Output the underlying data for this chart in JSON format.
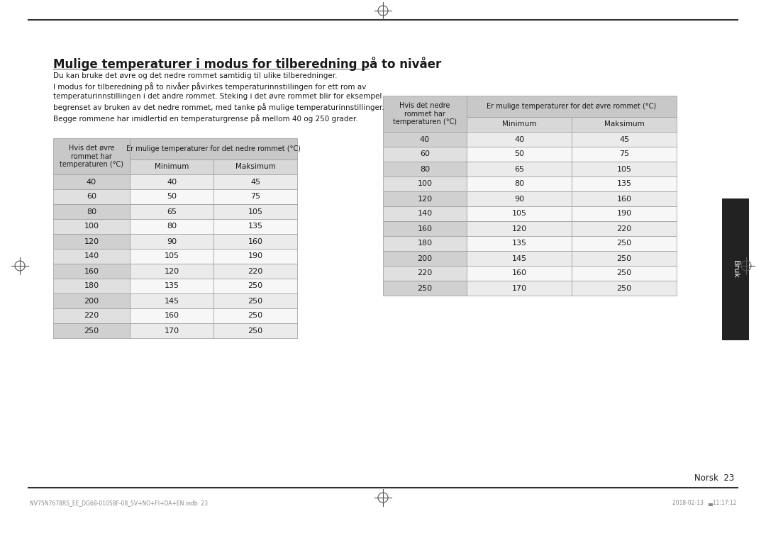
{
  "title": "Mulige temperaturer i modus for tilberedning på to nivåer",
  "description": "Du kan bruke det øvre og det nedre rommet samtidig til ulike tilberedninger.\nI modus for tilberedning på to nivåer påvirkes temperaturinnstillingen for ett rom av\ntemperaturinnstillingen i det andre rommet. Steking i det øvre rommet blir for eksempel\nbegrenset av bruken av det nedre rommet, med tanke på mulige temperaturinnstillinger.\nBegge rommene har imidlertid en temperaturgrense på mellom 40 og 250 grader.",
  "table1": {
    "header_col": "Hvis det øvre\nrommet har\ntemperaturen (°C)",
    "header_span": "Er mulige temperaturer for det nedre rommet (°C)",
    "col1": "Minimum",
    "col2": "Maksimum",
    "temps": [
      40,
      60,
      80,
      100,
      120,
      140,
      160,
      180,
      200,
      220,
      250
    ],
    "min_vals": [
      40,
      50,
      65,
      80,
      90,
      105,
      120,
      135,
      145,
      160,
      170
    ],
    "max_vals": [
      45,
      75,
      105,
      135,
      160,
      190,
      220,
      250,
      250,
      250,
      250
    ]
  },
  "table2": {
    "header_col": "Hvis det nedre\nrommet har\ntemperaturen (°C)",
    "header_span": "Er mulige temperaturer for det øvre rommet (°C)",
    "col1": "Minimum",
    "col2": "Maksimum",
    "temps": [
      40,
      60,
      80,
      100,
      120,
      140,
      160,
      180,
      200,
      220,
      250
    ],
    "min_vals": [
      40,
      50,
      65,
      80,
      90,
      105,
      120,
      135,
      145,
      160,
      170
    ],
    "max_vals": [
      45,
      75,
      105,
      135,
      160,
      190,
      220,
      250,
      250,
      250,
      250
    ]
  },
  "footer_left": "NV75N7678RS_EE_DG68-01058F-08_SV+NO+FI+DA+EN.indb  23",
  "footer_right": "2018-02-13   ▄11:17:12",
  "page_label": "Norsk  23",
  "sidebar_text": "Bruk",
  "bg_color": "#ffffff",
  "header_bg": "#c8c8c8",
  "subheader_bg": "#d8d8d8",
  "row_bg_even": "#ebebeb",
  "row_bg_odd": "#f7f7f7",
  "col0_bg_even": "#d0d0d0",
  "col0_bg_odd": "#e0e0e0",
  "border_color": "#999999",
  "text_color": "#1a1a1a",
  "sidebar_bg": "#222222"
}
